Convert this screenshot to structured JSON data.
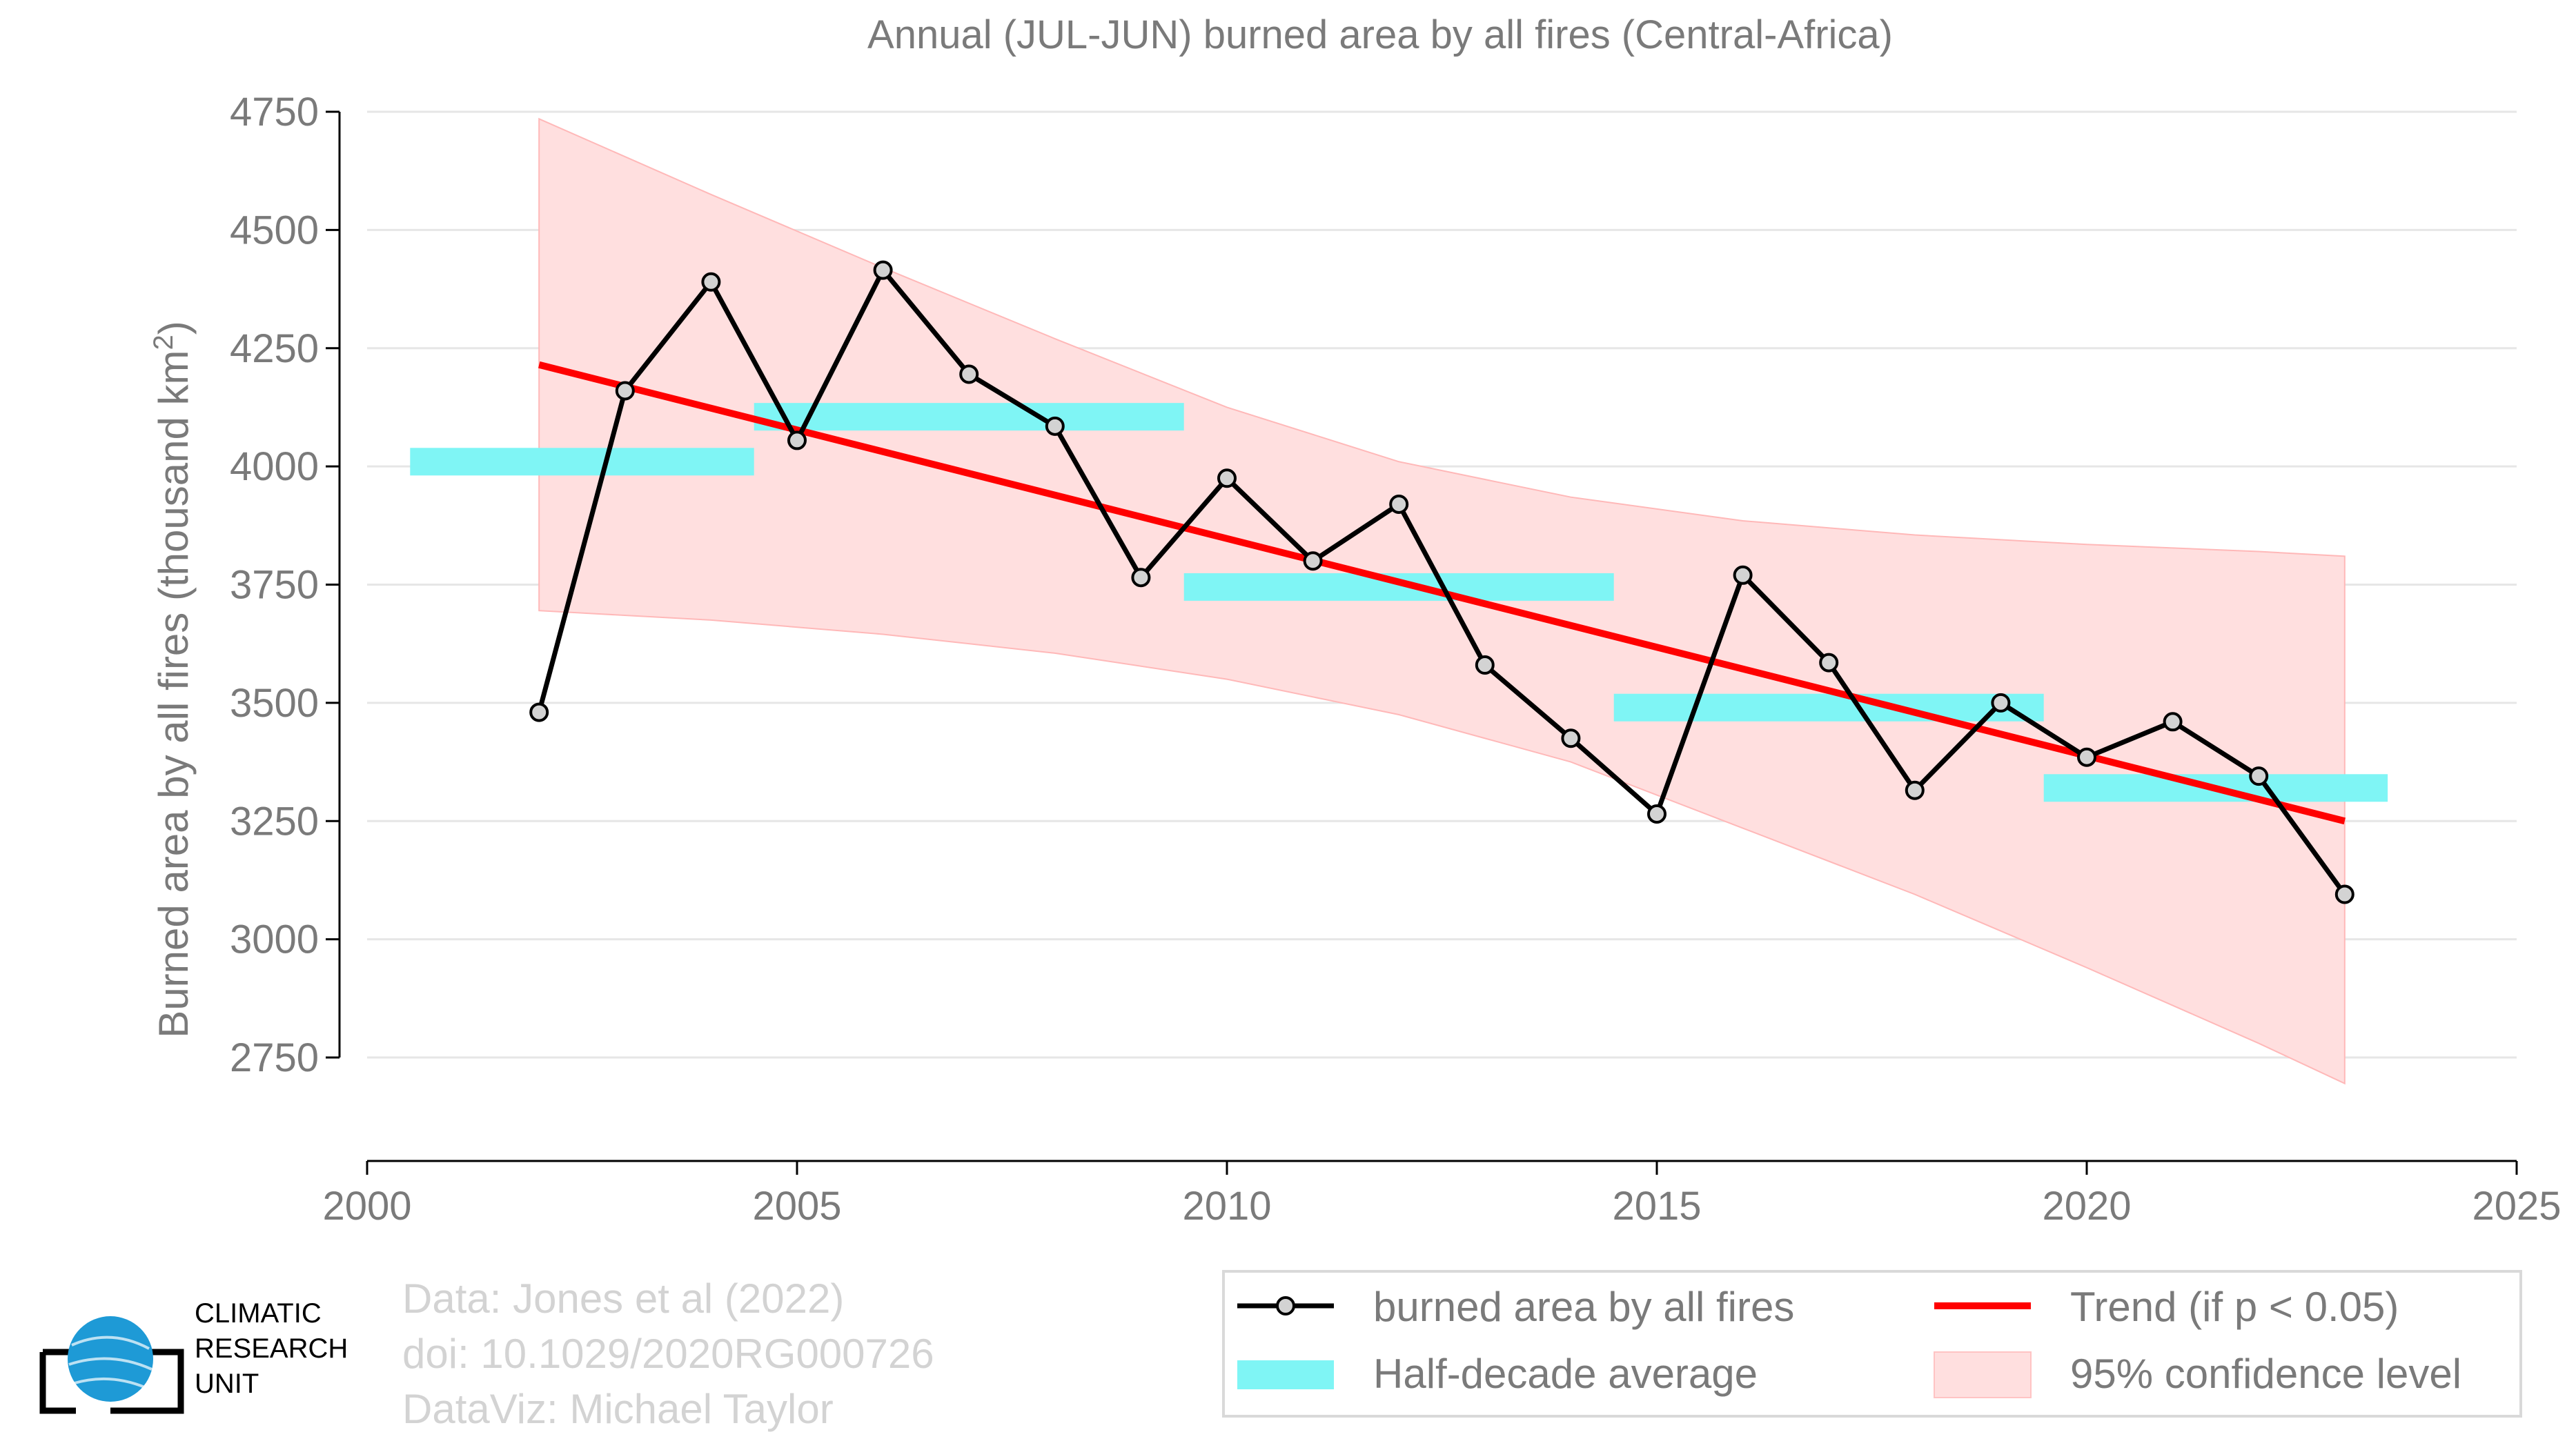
{
  "chart_data": {
    "type": "line",
    "title": "Annual (JUL-JUN) burned area by all fires (Central-Africa)",
    "ylabel": "Burned area by all fires (thousand km²)",
    "xlabel": "",
    "xlim": [
      2000,
      2025
    ],
    "ylim": [
      2750,
      4750
    ],
    "x_ticks": [
      2000,
      2005,
      2010,
      2015,
      2020,
      2025
    ],
    "y_ticks": [
      2750,
      3000,
      3250,
      3500,
      3750,
      4000,
      4250,
      4500,
      4750
    ],
    "grid": "horizontal",
    "legend_position": "bottom-right",
    "series": [
      {
        "name": "burned area by all fires",
        "type": "line",
        "color": "#000000",
        "x": [
          2002,
          2003,
          2004,
          2005,
          2006,
          2007,
          2008,
          2009,
          2010,
          2011,
          2012,
          2013,
          2014,
          2015,
          2016,
          2017,
          2018,
          2019,
          2020,
          2021,
          2022,
          2023
        ],
        "values": [
          3480,
          4160,
          4390,
          4055,
          4415,
          4195,
          4085,
          3765,
          3975,
          3800,
          3920,
          3580,
          3425,
          3265,
          3770,
          3585,
          3315,
          3500,
          3385,
          3460,
          3345,
          3095
        ]
      },
      {
        "name": "Trend (if p < 0.05)",
        "type": "line",
        "color": "#ff0000",
        "x": [
          2002,
          2023
        ],
        "values": [
          4215,
          3250
        ]
      },
      {
        "name": "Half-decade average",
        "type": "bar",
        "color": "#7ff5f5",
        "segments": [
          {
            "x_start": 2000.5,
            "x_end": 2004.5,
            "value": 4010
          },
          {
            "x_start": 2004.5,
            "x_end": 2009.5,
            "value": 4105
          },
          {
            "x_start": 2009.5,
            "x_end": 2014.5,
            "value": 3745
          },
          {
            "x_start": 2014.5,
            "x_end": 2019.5,
            "value": 3490
          },
          {
            "x_start": 2019.5,
            "x_end": 2023.5,
            "value": 3320
          }
        ]
      },
      {
        "name": "95% confidence level",
        "type": "area",
        "color": "#ffdfdf",
        "x": [
          2002,
          2004,
          2006,
          2008,
          2010,
          2012,
          2014,
          2016,
          2018,
          2020,
          2022,
          2023
        ],
        "upper": [
          4735,
          4575,
          4420,
          4270,
          4125,
          4010,
          3935,
          3885,
          3855,
          3835,
          3820,
          3810
        ],
        "lower": [
          3695,
          3675,
          3645,
          3605,
          3550,
          3475,
          3375,
          3235,
          3095,
          2940,
          2780,
          2695
        ]
      }
    ]
  },
  "legend": {
    "observed": "burned area by all fires",
    "trend": "Trend (if p < 0.05)",
    "average": "Half-decade average",
    "confidence": "95% confidence level"
  },
  "credits": {
    "line1": "Data: Jones et al (2022)",
    "line2": "doi: 10.1029/2020RG000726",
    "line3": "DataViz: Michael Taylor"
  },
  "logo": {
    "line1": "CLIMATIC",
    "line2": "RESEARCH",
    "line3": "UNIT"
  },
  "colors": {
    "observed": "#000000",
    "marker_fill": "#d3d3d3",
    "trend": "#ff0000",
    "average": "#7ff5f5",
    "confidence": "#ffdfdf",
    "confidence_edge": "#ffb8b8",
    "grid": "#e6e6e6",
    "axis": "#000000",
    "logo_globe": "#1e9ad6"
  }
}
